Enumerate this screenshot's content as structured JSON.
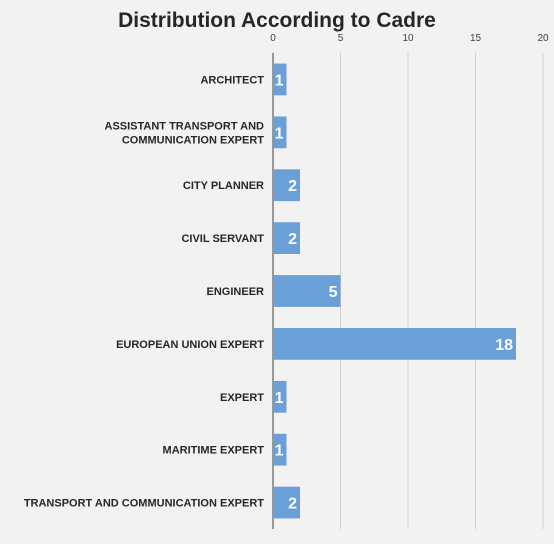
{
  "chart_data": {
    "type": "bar",
    "orientation": "horizontal",
    "title": "Distribution According to Cadre",
    "categories": [
      [
        "ARCHITECT"
      ],
      [
        "ASSISTANT TRANSPORT AND",
        "COMMUNICATION EXPERT"
      ],
      [
        "CITY PLANNER"
      ],
      [
        "CIVIL SERVANT"
      ],
      [
        "ENGINEER"
      ],
      [
        "EUROPEAN UNION EXPERT"
      ],
      [
        "EXPERT"
      ],
      [
        "MARITIME EXPERT"
      ],
      [
        "TRANSPORT AND COMMUNICATION EXPERT"
      ]
    ],
    "values": [
      1,
      1,
      2,
      2,
      5,
      18,
      1,
      1,
      2
    ],
    "xlim": [
      0,
      20
    ],
    "xticks": [
      0,
      5,
      10,
      15,
      20
    ],
    "x_axis_position": "top",
    "grid": true,
    "legend": "none",
    "bar_color": "#6a9fd8",
    "data_labels": "inside-end"
  }
}
